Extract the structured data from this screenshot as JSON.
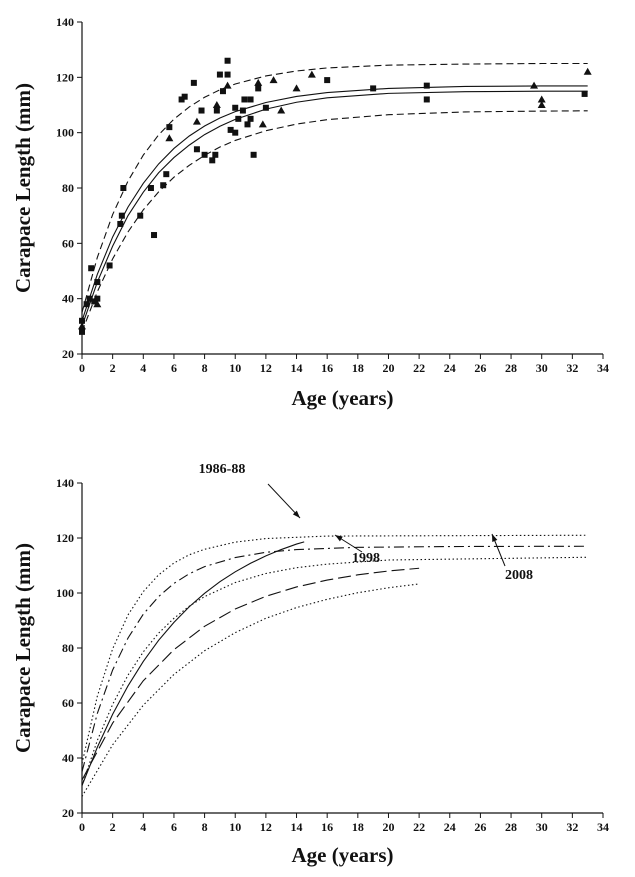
{
  "chart_data": [
    {
      "type": "scatter",
      "xlabel": "Age (years)",
      "ylabel": "Carapace Length (mm)",
      "xlim": [
        0,
        34
      ],
      "ylim": [
        20,
        140
      ],
      "xticks": [
        0,
        2,
        4,
        6,
        8,
        10,
        12,
        14,
        16,
        18,
        20,
        22,
        24,
        26,
        28,
        30,
        32,
        34
      ],
      "yticks": [
        20,
        40,
        60,
        80,
        100,
        120,
        140
      ],
      "series": [
        {
          "color": "#111111",
          "marker": "square",
          "x": [
            0,
            0,
            0.3,
            0.5,
            0.6,
            0.8,
            1,
            1,
            1.8,
            2.5,
            2.6,
            2.7,
            3.8,
            4.5,
            4.7,
            5.3,
            5.5,
            5.7,
            6.5,
            6.7,
            7.3,
            7.5,
            7.8,
            8,
            8.5,
            8.7,
            8.8,
            9,
            9.2,
            9.5,
            9.5,
            9.7,
            10,
            10,
            10.2,
            10.5,
            10.6,
            10.8,
            11,
            11.2,
            11,
            11.5,
            12,
            16,
            19,
            22.5,
            22.5,
            32.8
          ],
          "values": [
            28,
            32,
            38,
            40,
            51,
            39,
            46,
            40,
            52,
            67,
            70,
            80,
            70,
            80,
            63,
            81,
            85,
            102,
            112,
            113,
            118,
            94,
            108,
            92,
            90,
            92,
            108,
            121,
            115,
            126,
            121,
            101,
            109,
            100,
            105,
            108,
            112,
            103,
            105,
            92,
            112,
            116,
            109,
            119,
            116,
            117,
            112,
            114
          ]
        },
        {
          "color": "#111111",
          "marker": "triangle",
          "x": [
            0,
            1,
            5.7,
            7.5,
            8.8,
            9.5,
            11.5,
            11.8,
            12.5,
            13,
            14,
            15,
            29.5,
            30,
            30,
            33
          ],
          "values": [
            30,
            38,
            98,
            104,
            110,
            117,
            118,
            103,
            119,
            108,
            116,
            121,
            117,
            110,
            112,
            122
          ]
        },
        {
          "color": "#111111",
          "dash": "solid",
          "x": [
            0,
            1,
            2,
            3,
            4,
            5,
            6,
            7,
            8,
            9,
            10,
            12,
            14,
            16,
            20,
            25,
            30,
            33
          ],
          "values": [
            32,
            48.8,
            62.3,
            73.1,
            81.7,
            88.7,
            94.3,
            98.8,
            102.4,
            105.3,
            107.6,
            110.9,
            113.1,
            114.5,
            116,
            116.7,
            116.9,
            116.9
          ]
        },
        {
          "color": "#111111",
          "dash": "solid",
          "x": [
            0,
            1,
            2,
            3,
            4,
            5,
            6,
            7,
            8,
            9,
            10,
            12,
            14,
            16,
            20,
            25,
            30,
            33
          ],
          "values": [
            30,
            46,
            59,
            70,
            78.5,
            85.5,
            91,
            95.5,
            99.3,
            102.3,
            104.8,
            108.5,
            111,
            112.6,
            114.2,
            114.8,
            115,
            115
          ]
        },
        {
          "color": "#111111",
          "dash": "dashed",
          "x": [
            0,
            1,
            2,
            3,
            4,
            5,
            6,
            7,
            8,
            9,
            10,
            12,
            14,
            16,
            20,
            25,
            30,
            33
          ],
          "values": [
            35,
            54.9,
            70.4,
            82.5,
            91.9,
            99.2,
            104.9,
            109.3,
            112.8,
            115.5,
            117.6,
            120.5,
            122.3,
            123.4,
            124.4,
            124.8,
            125,
            125
          ]
        },
        {
          "color": "#111111",
          "dash": "dashed",
          "x": [
            0,
            1,
            2,
            3,
            4,
            5,
            6,
            7,
            8,
            9,
            10,
            12,
            14,
            16,
            20,
            25,
            30,
            33
          ],
          "values": [
            28,
            42.5,
            54.4,
            64.1,
            72.1,
            78.6,
            83.9,
            88.2,
            91.8,
            94.8,
            97.2,
            100.7,
            103.1,
            104.7,
            106.5,
            107.5,
            107.8,
            107.9
          ]
        }
      ]
    },
    {
      "type": "line",
      "xlabel": "Age (years)",
      "ylabel": "Carapace Length (mm)",
      "xlim": [
        0,
        34
      ],
      "ylim": [
        20,
        140
      ],
      "xticks": [
        0,
        2,
        4,
        6,
        8,
        10,
        12,
        14,
        16,
        18,
        20,
        22,
        24,
        26,
        28,
        30,
        32,
        34
      ],
      "yticks": [
        20,
        40,
        60,
        80,
        100,
        120,
        140
      ],
      "annotations": [
        "1986-88",
        "1998",
        "2008"
      ],
      "series": [
        {
          "color": "#111111",
          "dash": "solid",
          "x": [
            0,
            1,
            2,
            3,
            4,
            5,
            6,
            7,
            8,
            9,
            10,
            11,
            12,
            13,
            14,
            14.5
          ],
          "values": [
            30,
            43.9,
            55.9,
            66.2,
            75.1,
            82.8,
            89.3,
            95,
            99.9,
            104.1,
            107.7,
            110.8,
            113.5,
            115.8,
            117.8,
            118.6
          ]
        },
        {
          "color": "#111111",
          "dash": "longdash",
          "x": [
            0,
            2,
            4,
            6,
            8,
            10,
            12,
            14,
            16,
            18,
            20,
            22
          ],
          "values": [
            32,
            52.7,
            68.1,
            79.4,
            87.9,
            94.2,
            98.8,
            102.2,
            104.7,
            106.6,
            108,
            109
          ]
        },
        {
          "color": "#111111",
          "dash": "dashdot",
          "x": [
            0,
            1,
            2,
            3,
            4,
            5,
            6,
            7,
            8,
            10,
            12,
            14,
            18,
            24,
            33
          ],
          "values": [
            35,
            56.2,
            72,
            83.6,
            92.3,
            98.7,
            103.5,
            107,
            109.6,
            112.9,
            114.8,
            115.8,
            116.6,
            116.9,
            117
          ]
        },
        {
          "color": "#111111",
          "dash": "dotted",
          "x": [
            0,
            1,
            2,
            3,
            4,
            5,
            6,
            7,
            8,
            10,
            12,
            16,
            33
          ],
          "values": [
            38,
            62.5,
            79.7,
            92,
            100.5,
            106.6,
            110.9,
            113.9,
            115.9,
            118.5,
            119.8,
            120.7,
            121
          ]
        },
        {
          "color": "#111111",
          "dash": "dotted",
          "x": [
            0,
            1,
            2,
            3,
            4,
            5,
            6,
            7,
            8,
            10,
            12,
            14,
            16,
            20,
            33
          ],
          "values": [
            30,
            46.4,
            59.5,
            70.1,
            78.6,
            85.4,
            90.8,
            95.2,
            98.7,
            103.8,
            107.1,
            109.2,
            110.5,
            112,
            113
          ]
        },
        {
          "color": "#111111",
          "dash": "dotted",
          "x": [
            0,
            2,
            4,
            6,
            8,
            10,
            12,
            14,
            16,
            18,
            20,
            22
          ],
          "values": [
            26,
            44.8,
            59.2,
            70.4,
            79,
            85.6,
            90.8,
            94.7,
            97.7,
            100.1,
            101.9,
            103.3
          ]
        }
      ]
    }
  ]
}
